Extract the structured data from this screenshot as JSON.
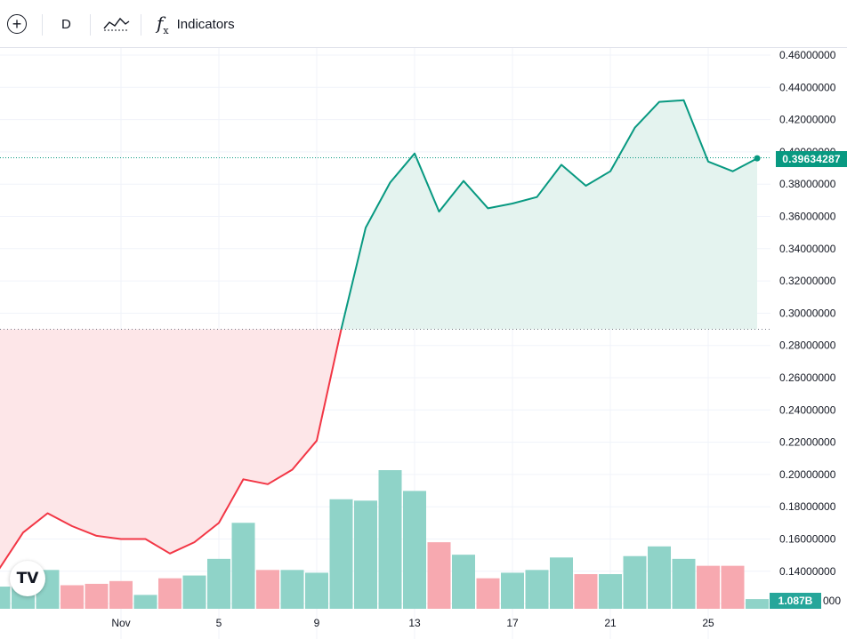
{
  "toolbar": {
    "add_icon": "plus-circle-icon",
    "interval_label": "D",
    "chart_type_icon": "area-chart-icon",
    "indicators_icon": "fx-icon",
    "indicators_label": "Indicators"
  },
  "logo": {
    "text": "TV",
    "icon": "tradingview-logo-icon"
  },
  "price_badge": "0.39634287",
  "volume_badge": "1.087B",
  "volume_badge_tail": "000",
  "colors": {
    "up": "#089981",
    "down": "#f23645",
    "up_fill": "#e4f3ef",
    "down_fill": "#fde6e8",
    "vol_up": "#8fd3c8",
    "vol_down": "#f7a9b0"
  },
  "chart_data": {
    "type": "area",
    "baseline": 0.29,
    "last_price": 0.39634287,
    "price_axis_labels": [
      "0.46000000",
      "0.44000000",
      "0.42000000",
      "0.40000000",
      "0.38000000",
      "0.36000000",
      "0.34000000",
      "0.32000000",
      "0.30000000",
      "0.28000000",
      "0.26000000",
      "0.24000000",
      "0.22000000",
      "0.20000000",
      "0.18000000",
      "0.16000000",
      "0.14000000",
      "0.12000000"
    ],
    "time_labels": [
      {
        "label": "Nov",
        "day": 0
      },
      {
        "label": "5",
        "day": 4
      },
      {
        "label": "9",
        "day": 8
      },
      {
        "label": "13",
        "day": 12
      },
      {
        "label": "17",
        "day": 16
      },
      {
        "label": "21",
        "day": 20
      },
      {
        "label": "25",
        "day": 24
      }
    ],
    "price_days": [
      -5,
      -4,
      -3,
      -2,
      -1,
      0,
      1,
      2,
      3,
      4,
      5,
      6,
      7,
      8,
      9,
      10,
      11,
      12,
      13,
      14,
      15,
      16,
      17,
      18,
      19,
      20,
      21,
      22,
      23,
      24,
      25,
      26
    ],
    "prices": [
      0.141,
      0.164,
      0.176,
      0.168,
      0.162,
      0.16,
      0.16,
      0.151,
      0.158,
      0.17,
      0.197,
      0.194,
      0.203,
      0.221,
      0.29,
      0.353,
      0.381,
      0.399,
      0.363,
      0.382,
      0.365,
      0.368,
      0.372,
      0.392,
      0.379,
      0.388,
      0.415,
      0.431,
      0.432,
      0.394,
      0.388,
      0.396
    ],
    "volume_days": [
      -5,
      -4,
      -3,
      -2,
      -1,
      0,
      1,
      2,
      3,
      4,
      5,
      6,
      7,
      8,
      9,
      10,
      11,
      12,
      13,
      14,
      15,
      16,
      17,
      18,
      19,
      20,
      21,
      22,
      23,
      24,
      25,
      26
    ],
    "volume": [
      0.16,
      0.26,
      0.28,
      0.17,
      0.18,
      0.2,
      0.1,
      0.22,
      0.24,
      0.36,
      0.62,
      0.28,
      0.28,
      0.26,
      0.79,
      0.78,
      1.0,
      0.85,
      0.48,
      0.39,
      0.22,
      0.26,
      0.28,
      0.37,
      0.25,
      0.25,
      0.38,
      0.45,
      0.36,
      0.31,
      0.31,
      0.07
    ],
    "volume_dir": [
      "up",
      "up",
      "up",
      "down",
      "down",
      "down",
      "up",
      "down",
      "up",
      "up",
      "up",
      "down",
      "up",
      "up",
      "up",
      "up",
      "up",
      "up",
      "down",
      "up",
      "down",
      "up",
      "up",
      "up",
      "down",
      "up",
      "up",
      "up",
      "up",
      "down",
      "down",
      "up"
    ],
    "grid": true
  }
}
